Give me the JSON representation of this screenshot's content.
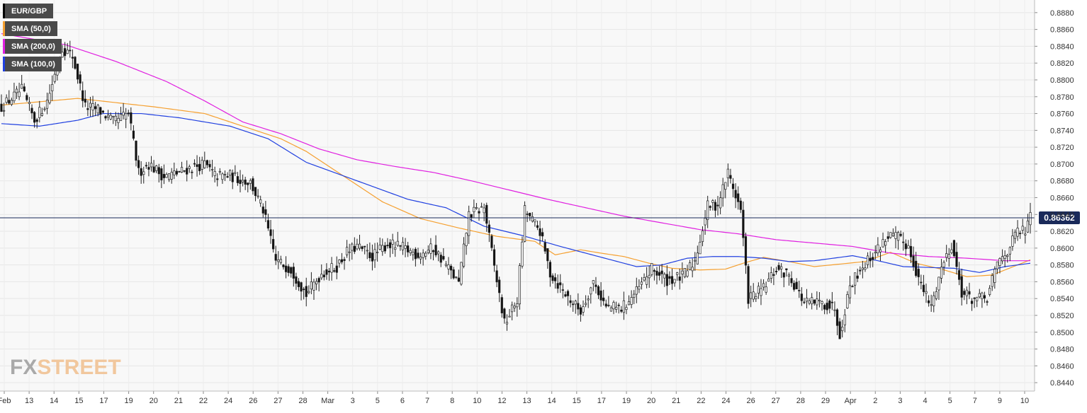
{
  "chart_data": {
    "type": "candlestick",
    "symbol": "EUR/GBP",
    "ylim": [
      0.843,
      0.8895
    ],
    "y_ticks": [
      "0.8880",
      "0.8860",
      "0.8840",
      "0.8820",
      "0.8800",
      "0.8780",
      "0.8760",
      "0.8740",
      "0.8720",
      "0.8700",
      "0.8680",
      "0.8660",
      "0.8640",
      "0.8620",
      "0.8600",
      "0.8580",
      "0.8560",
      "0.8540",
      "0.8520",
      "0.8500",
      "0.8480",
      "0.8460",
      "0.8440"
    ],
    "x_ticks": [
      "Feb",
      "13",
      "14",
      "15",
      "17",
      "19",
      "20",
      "21",
      "22",
      "24",
      "26",
      "27",
      "28",
      "Mar",
      "3",
      "5",
      "6",
      "7",
      "8",
      "10",
      "12",
      "13",
      "14",
      "15",
      "17",
      "19",
      "20",
      "21",
      "22",
      "24",
      "26",
      "27",
      "28",
      "29",
      "Apr",
      "2",
      "3",
      "4",
      "5",
      "7",
      "9",
      "10"
    ],
    "current_price": 0.8636,
    "current_price_label": "0.86362",
    "legend": [
      {
        "label": "SMA (200,0)",
        "color": "#e020e0"
      },
      {
        "label": "SMA (50,0)",
        "color": "#f5a030"
      },
      {
        "label": "EUR/GBP",
        "color": "#000000"
      },
      {
        "label": "SMA (100,0)",
        "color": "#2040e0"
      }
    ],
    "series": [
      {
        "name": "SMA (50,0)",
        "color": "#f5a030",
        "anchors": [
          [
            0,
            0.877
          ],
          [
            30,
            0.8778
          ],
          [
            60,
            0.8768
          ],
          [
            80,
            0.876
          ],
          [
            95,
            0.8745
          ],
          [
            110,
            0.873
          ],
          [
            120,
            0.8715
          ],
          [
            135,
            0.8685
          ],
          [
            150,
            0.8655
          ],
          [
            165,
            0.8635
          ],
          [
            180,
            0.8624
          ],
          [
            195,
            0.8614
          ],
          [
            210,
            0.8608
          ],
          [
            218,
            0.8592
          ],
          [
            228,
            0.8598
          ],
          [
            236,
            0.8594
          ],
          [
            245,
            0.859
          ],
          [
            255,
            0.8582
          ],
          [
            264,
            0.8576
          ],
          [
            275,
            0.8574
          ],
          [
            285,
            0.8575
          ],
          [
            292,
            0.8582
          ],
          [
            300,
            0.8589
          ],
          [
            310,
            0.8584
          ],
          [
            320,
            0.8578
          ],
          [
            330,
            0.8581
          ],
          [
            340,
            0.8584
          ],
          [
            350,
            0.8595
          ],
          [
            360,
            0.8582
          ],
          [
            370,
            0.8575
          ],
          [
            380,
            0.8566
          ],
          [
            390,
            0.8568
          ],
          [
            400,
            0.858
          ],
          [
            405,
            0.8586
          ]
        ]
      },
      {
        "name": "SMA (200,0)",
        "color": "#e020e0",
        "anchors": [
          [
            0,
            0.8855
          ],
          [
            25,
            0.8842
          ],
          [
            45,
            0.8822
          ],
          [
            65,
            0.8798
          ],
          [
            80,
            0.8775
          ],
          [
            95,
            0.875
          ],
          [
            110,
            0.8736
          ],
          [
            125,
            0.8718
          ],
          [
            140,
            0.8705
          ],
          [
            155,
            0.8697
          ],
          [
            170,
            0.869
          ],
          [
            185,
            0.868
          ],
          [
            200,
            0.8669
          ],
          [
            215,
            0.8658
          ],
          [
            230,
            0.8648
          ],
          [
            245,
            0.8638
          ],
          [
            260,
            0.863
          ],
          [
            275,
            0.8622
          ],
          [
            290,
            0.8617
          ],
          [
            305,
            0.861
          ],
          [
            320,
            0.8606
          ],
          [
            335,
            0.8602
          ],
          [
            350,
            0.8594
          ],
          [
            365,
            0.859
          ],
          [
            380,
            0.8588
          ],
          [
            395,
            0.8585
          ],
          [
            405,
            0.8585
          ]
        ]
      },
      {
        "name": "SMA (100,0)",
        "color": "#2040e0",
        "anchors": [
          [
            0,
            0.8748
          ],
          [
            15,
            0.8745
          ],
          [
            30,
            0.8752
          ],
          [
            40,
            0.876
          ],
          [
            55,
            0.876
          ],
          [
            70,
            0.8755
          ],
          [
            90,
            0.8745
          ],
          [
            105,
            0.873
          ],
          [
            120,
            0.8702
          ],
          [
            140,
            0.868
          ],
          [
            160,
            0.8658
          ],
          [
            175,
            0.8648
          ],
          [
            190,
            0.8626
          ],
          [
            205,
            0.8615
          ],
          [
            220,
            0.8602
          ],
          [
            235,
            0.859
          ],
          [
            250,
            0.8578
          ],
          [
            260,
            0.858
          ],
          [
            270,
            0.8588
          ],
          [
            280,
            0.859
          ],
          [
            290,
            0.859
          ],
          [
            300,
            0.8588
          ],
          [
            310,
            0.8584
          ],
          [
            320,
            0.8585
          ],
          [
            335,
            0.8591
          ],
          [
            345,
            0.8585
          ],
          [
            355,
            0.8578
          ],
          [
            365,
            0.8577
          ],
          [
            375,
            0.8576
          ],
          [
            385,
            0.8571
          ],
          [
            395,
            0.8578
          ],
          [
            405,
            0.8582
          ]
        ]
      }
    ],
    "candles": {
      "count": 406,
      "anchors": [
        [
          0,
          0.8768
        ],
        [
          8,
          0.8788
        ],
        [
          13,
          0.8752
        ],
        [
          18,
          0.8775
        ],
        [
          24,
          0.8838
        ],
        [
          28,
          0.8828
        ],
        [
          33,
          0.8768
        ],
        [
          38,
          0.8765
        ],
        [
          44,
          0.875
        ],
        [
          50,
          0.876
        ],
        [
          54,
          0.869
        ],
        [
          58,
          0.87
        ],
        [
          64,
          0.8685
        ],
        [
          70,
          0.869
        ],
        [
          74,
          0.8695
        ],
        [
          80,
          0.87
        ],
        [
          84,
          0.8686
        ],
        [
          90,
          0.8686
        ],
        [
          98,
          0.8678
        ],
        [
          103,
          0.8645
        ],
        [
          108,
          0.8585
        ],
        [
          114,
          0.8575
        ],
        [
          120,
          0.8545
        ],
        [
          126,
          0.857
        ],
        [
          132,
          0.8578
        ],
        [
          136,
          0.8595
        ],
        [
          140,
          0.8602
        ],
        [
          146,
          0.859
        ],
        [
          152,
          0.8605
        ],
        [
          158,
          0.86
        ],
        [
          164,
          0.8592
        ],
        [
          170,
          0.86
        ],
        [
          175,
          0.858
        ],
        [
          180,
          0.8558
        ],
        [
          184,
          0.864
        ],
        [
          190,
          0.8648
        ],
        [
          194,
          0.8578
        ],
        [
          198,
          0.851
        ],
        [
          203,
          0.8538
        ],
        [
          206,
          0.8645
        ],
        [
          212,
          0.862
        ],
        [
          216,
          0.857
        ],
        [
          222,
          0.8545
        ],
        [
          228,
          0.8525
        ],
        [
          233,
          0.856
        ],
        [
          238,
          0.853
        ],
        [
          244,
          0.8528
        ],
        [
          250,
          0.8548
        ],
        [
          256,
          0.8575
        ],
        [
          262,
          0.8562
        ],
        [
          268,
          0.8566
        ],
        [
          273,
          0.8585
        ],
        [
          278,
          0.865
        ],
        [
          282,
          0.8652
        ],
        [
          286,
          0.869
        ],
        [
          291,
          0.8645
        ],
        [
          294,
          0.854
        ],
        [
          300,
          0.8552
        ],
        [
          305,
          0.8575
        ],
        [
          310,
          0.8568
        ],
        [
          316,
          0.8535
        ],
        [
          322,
          0.8535
        ],
        [
          328,
          0.853
        ],
        [
          330,
          0.8498
        ],
        [
          334,
          0.8556
        ],
        [
          338,
          0.8575
        ],
        [
          344,
          0.8595
        ],
        [
          349,
          0.8615
        ],
        [
          353,
          0.8612
        ],
        [
          357,
          0.8602
        ],
        [
          362,
          0.8555
        ],
        [
          366,
          0.853
        ],
        [
          370,
          0.8577
        ],
        [
          374,
          0.8605
        ],
        [
          378,
          0.8548
        ],
        [
          382,
          0.854
        ],
        [
          388,
          0.854
        ],
        [
          392,
          0.8582
        ],
        [
          396,
          0.8597
        ],
        [
          400,
          0.862
        ],
        [
          403,
          0.862
        ],
        [
          405,
          0.8636
        ]
      ]
    }
  }
}
